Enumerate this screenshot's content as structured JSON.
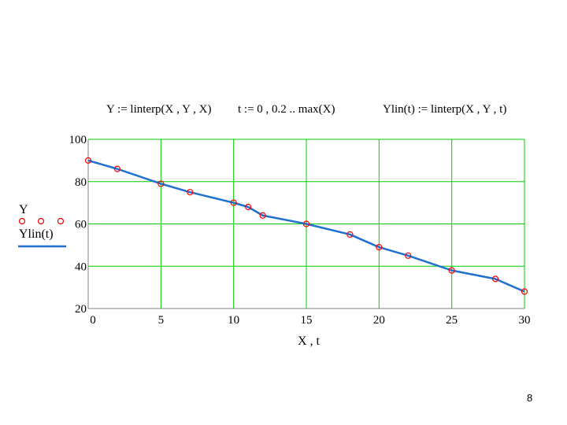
{
  "formulas": {
    "f1": "Y := linterp(X , Y , X)",
    "f2": "t := 0 , 0.2 .. max(X)",
    "f3": "Ylin(t) := linterp(X , Y , t)"
  },
  "page_number": "8",
  "colors": {
    "grid": "#00cc00",
    "points": "#ff0000",
    "line": "#1e6fd0",
    "axis": "#808080"
  },
  "chart_data": {
    "type": "line",
    "xlabel": "X , t",
    "ylabel_series": [
      "Y",
      "Ylin(t)"
    ],
    "xlim": [
      0,
      30
    ],
    "ylim": [
      20,
      100
    ],
    "x_ticks": [
      "0",
      "5",
      "10",
      "15",
      "20",
      "25",
      "30"
    ],
    "y_ticks": [
      "20",
      "40",
      "60",
      "80",
      "100"
    ],
    "grid": true,
    "series": [
      {
        "name": "Y",
        "style": "circles",
        "x": [
          0,
          2,
          5,
          7,
          10,
          11,
          12,
          15,
          18,
          20,
          22,
          25,
          28,
          30
        ],
        "y": [
          90,
          86,
          79,
          75,
          70,
          68,
          64,
          60,
          55,
          49,
          45,
          38,
          34,
          28
        ]
      },
      {
        "name": "Ylin(t)",
        "style": "line",
        "x": [
          0,
          2,
          5,
          7,
          10,
          11,
          12,
          15,
          18,
          20,
          22,
          25,
          28,
          30
        ],
        "y": [
          90,
          86,
          79,
          75,
          70,
          68,
          64,
          60,
          55,
          49,
          45,
          38,
          34,
          28
        ]
      }
    ]
  }
}
